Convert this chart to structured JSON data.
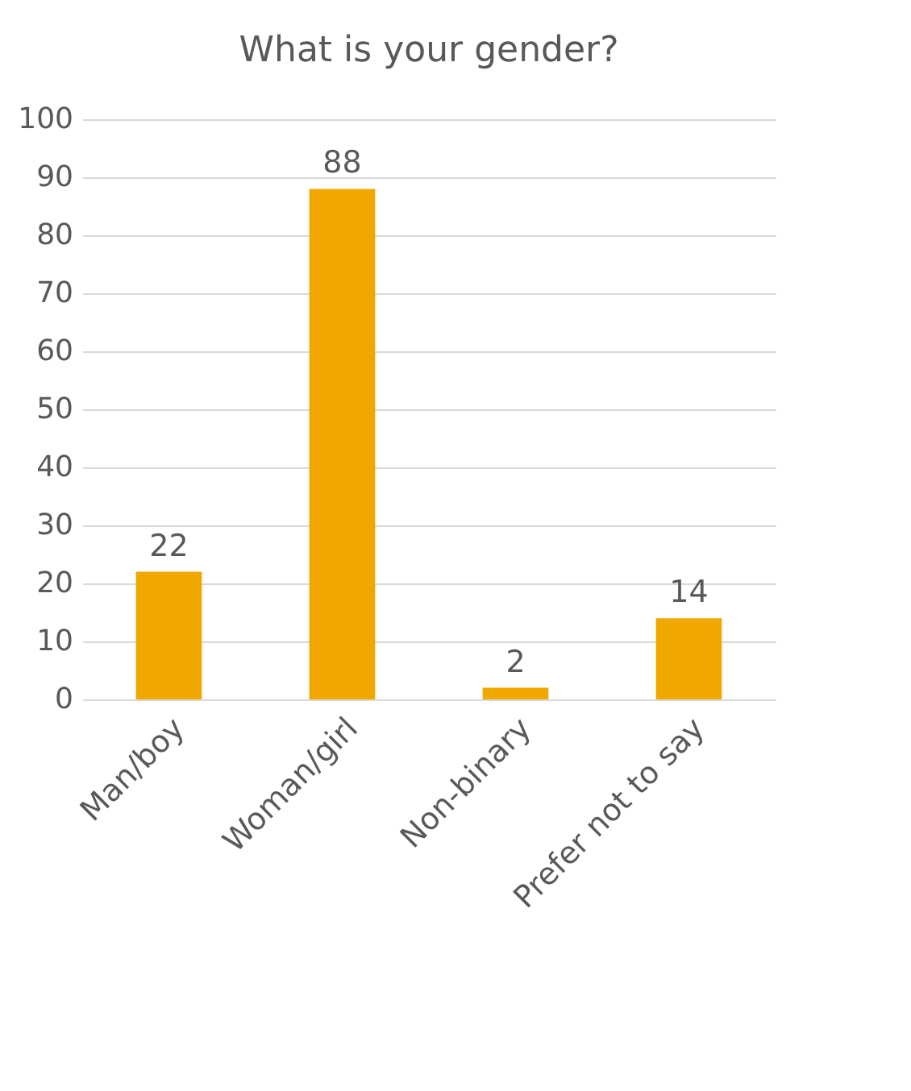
{
  "chart_data": {
    "type": "bar",
    "title": "What is your gender?",
    "categories": [
      "Man/boy",
      "Woman/girl",
      "Non-binary",
      "Prefer not to say"
    ],
    "values": [
      22,
      88,
      2,
      14
    ],
    "color": "#f0a800",
    "ylim": [
      0,
      100
    ],
    "yticks": [
      0,
      10,
      20,
      30,
      40,
      50,
      60,
      70,
      80,
      90,
      100
    ],
    "grid": "y",
    "data_labels": true
  }
}
